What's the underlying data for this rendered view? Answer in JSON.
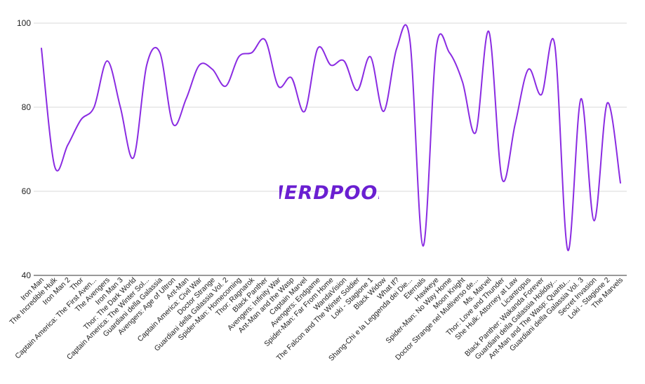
{
  "watermark": "NERDPOOL",
  "colors": {
    "line": "#8a2be2",
    "brand": "#6a1fd1",
    "grid": "#d9d9d9",
    "axis": "#333333",
    "text": "#222222"
  },
  "chart_data": {
    "type": "line",
    "title": "",
    "xlabel": "",
    "ylabel": "",
    "ylim": [
      40,
      100
    ],
    "yticks": [
      40,
      60,
      80,
      100
    ],
    "grid": true,
    "legend": "none",
    "categories": [
      "Iron Man",
      "The Incredible Hulk",
      "Iron Man 2",
      "Thor",
      "Captain America: The First Aven...",
      "The Avengers",
      "Iron Man 3",
      "Thor: The Dark World",
      "Captain America: The Winter Sol...",
      "Guardiani della Galassia",
      "Avengers: Age of Ultron",
      "Ant-Man",
      "Captain America: Civil War",
      "Doctor Strange",
      "Guardiani della Galassia Vol. 2",
      "Spider-Man: Homecoming",
      "Thor: Ragnarok",
      "Black Panther",
      "Avengers: Infinity War",
      "Ant-Man and the Wasp",
      "Captain Marvel",
      "Avengers: Endgame",
      "Spider-Man: Far From Home",
      "WandaVision",
      "The Falcon and The Winter Soldier",
      "Loki - Stagione 1",
      "Black Widow",
      "What If?",
      "Shang-Chi e la Leggenda dei Die...",
      "Eternals",
      "Hawkeye",
      "Spider-Man: No Way Home",
      "Moon Knight",
      "Doctor Strange nel Multiverso de...",
      "Ms. Marvel",
      "Thor: Love and Thunder",
      "She Hulk: Attorney at Law",
      "Licantropus",
      "Black Panther: Wakanda Forever",
      "Guardiani della Galassia Holiday...",
      "Ant-Man and The Wasp: Quantu...",
      "Guardiani della Galassia Vol. 3",
      "Secret Invasion",
      "Loki - Stagione 2",
      "The Marvels"
    ],
    "series": [
      {
        "values": [
          94,
          66,
          71,
          77,
          80,
          91,
          80,
          68,
          90,
          93,
          76,
          82,
          90,
          89,
          85,
          92,
          93,
          96,
          85,
          87,
          79,
          94,
          90,
          91,
          84,
          92,
          79,
          94,
          96,
          47,
          94,
          93,
          86,
          74,
          98,
          63,
          76,
          89,
          83,
          95,
          46,
          82,
          53,
          81,
          62
        ]
      }
    ]
  }
}
